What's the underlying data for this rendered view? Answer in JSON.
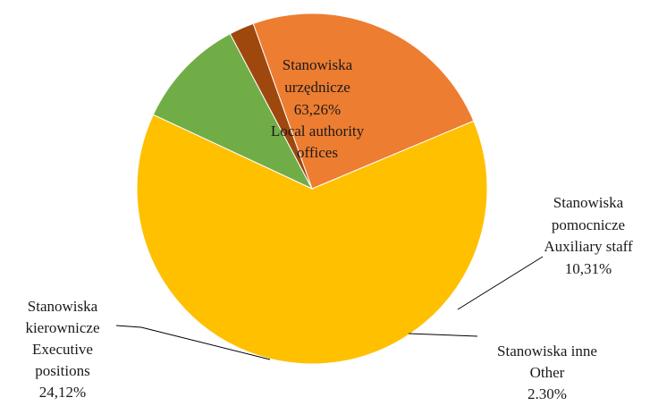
{
  "chart_data": {
    "type": "pie",
    "title": "",
    "slices": [
      {
        "label_pl": "Stanowiska urzędnicze",
        "label_en": "Local authority offices",
        "value": 63.26,
        "value_text": "63,26%",
        "color": "#FFC000"
      },
      {
        "label_pl": "Stanowiska pomocnicze",
        "label_en": "Auxiliary staff",
        "value": 10.31,
        "value_text": "10,31%",
        "color": "#70AD47"
      },
      {
        "label_pl": "Stanowiska inne",
        "label_en": "Other",
        "value": 2.3,
        "value_text": "2.30%",
        "color": "#9E480E"
      },
      {
        "label_pl": "Stanowiska kierownicze",
        "label_en": "Executive positions",
        "value": 24.12,
        "value_text": "24,12%",
        "color": "#ED7D31"
      }
    ],
    "labels": {
      "urz_line1": "Stanowiska",
      "urz_line2": "urzędnicze",
      "urz_line3": "63,26%",
      "urz_line4": "Local authority",
      "urz_line5": "offices",
      "pom_line1": "Stanowiska",
      "pom_line2": "pomocnicze",
      "pom_line3": "Auxiliary staff",
      "pom_line4": "10,31%",
      "inne_line1": "Stanowiska inne",
      "inne_line2": "Other",
      "inne_line3": "2.30%",
      "kier_line1": "Stanowiska",
      "kier_line2": "kierownicze",
      "kier_line3": "Executive",
      "kier_line4": "positions",
      "kier_line5": "24,12%"
    },
    "legend": "none"
  }
}
